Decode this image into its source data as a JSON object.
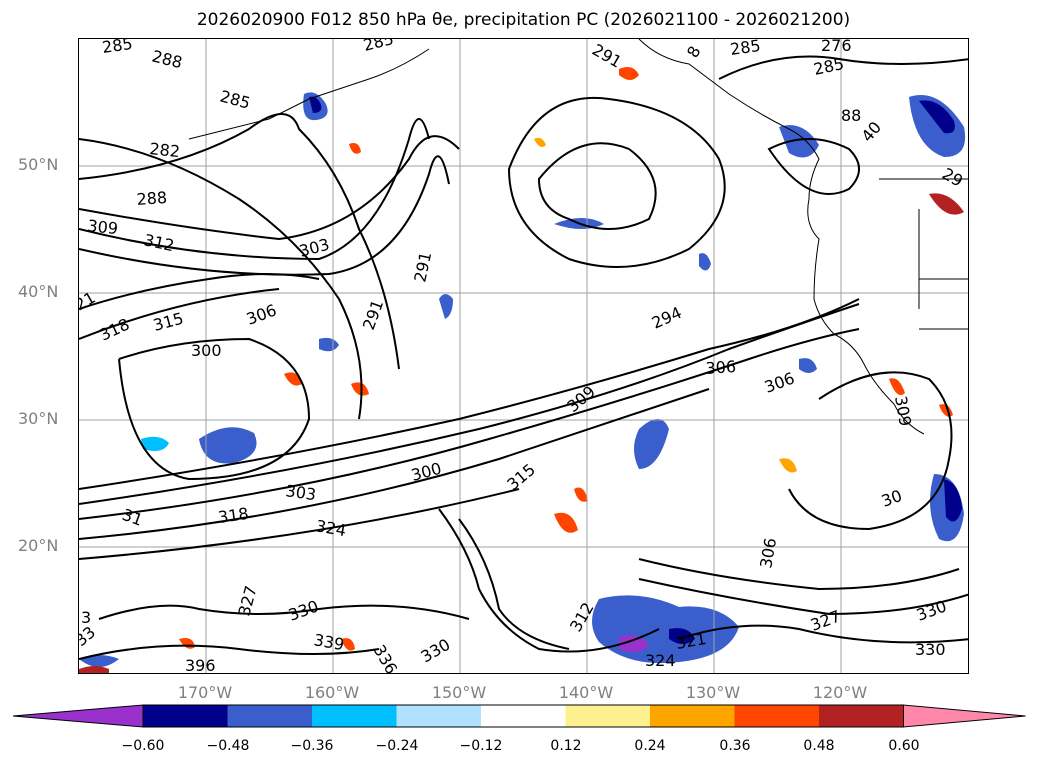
{
  "title": "2026020900 F012 850 hPa θe, precipitation PC (2026021100 - 2026021200)",
  "latitude_labels": [
    "50°N",
    "40°N",
    "30°N",
    "20°N"
  ],
  "longitude_labels": [
    "170°W",
    "160°W",
    "150°W",
    "140°W",
    "130°W",
    "120°W"
  ],
  "colorbar": {
    "colors": [
      "#9932cc",
      "#00008b",
      "#3a5fcd",
      "#00bfff",
      "#b0e2ff",
      "#ffffff",
      "#fff08f",
      "#ffa500",
      "#ff4500",
      "#b22222",
      "#ff88aa"
    ],
    "tick_labels": [
      "−0.60",
      "−0.48",
      "−0.36",
      "−0.24",
      "−0.12",
      "0.12",
      "0.24",
      "0.36",
      "0.48",
      "0.60"
    ]
  },
  "contour_labels": [
    "285",
    "288",
    "285",
    "291",
    "8",
    "285",
    "276",
    "285",
    "285",
    "282",
    "288",
    "88",
    "40",
    "29",
    "288",
    "309",
    "312",
    "303",
    "291",
    "21",
    "318",
    "315",
    "306",
    "291",
    "294",
    "300",
    "306",
    "306",
    "309",
    "309",
    "300",
    "303",
    "318",
    "315",
    "31",
    "324",
    "306",
    "30",
    "327",
    "330",
    "312",
    "3",
    "330",
    "327",
    "321",
    "33",
    "339",
    "336",
    "330",
    "330",
    "324",
    "396"
  ],
  "colors": {
    "contour": "#000000",
    "grid": "#a0a0a0",
    "coast": "#000000",
    "axis_text": "#808080"
  }
}
